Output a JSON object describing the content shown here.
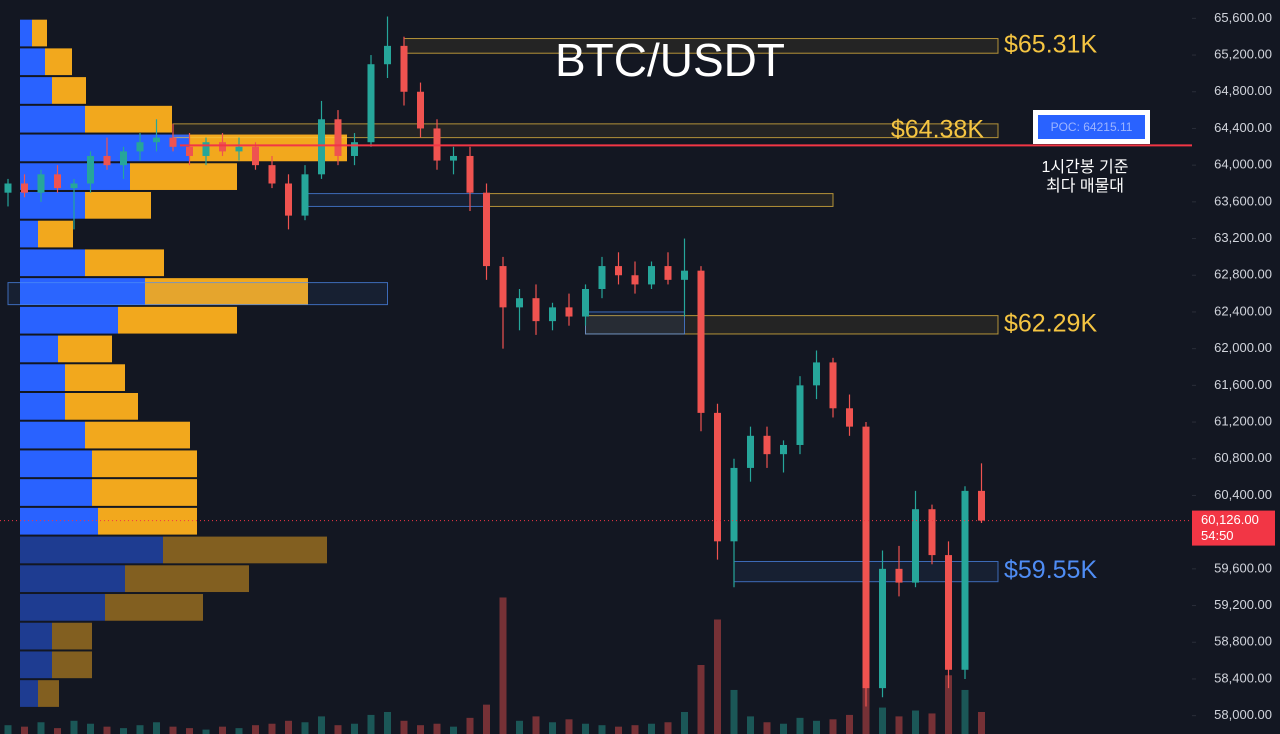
{
  "chart_data": {
    "type": "candlestick",
    "title": "BTC/USDT",
    "ylim": [
      57800,
      65800
    ],
    "yticks": [
      {
        "value": 65600,
        "label": "65,600.00"
      },
      {
        "value": 65200,
        "label": "65,200.00"
      },
      {
        "value": 64800,
        "label": "64,800.00"
      },
      {
        "value": 64400,
        "label": "64,400.00"
      },
      {
        "value": 64000,
        "label": "64,000.00"
      },
      {
        "value": 63600,
        "label": "63,600.00"
      },
      {
        "value": 63200,
        "label": "63,200.00"
      },
      {
        "value": 62800,
        "label": "62,800.00"
      },
      {
        "value": 62400,
        "label": "62,400.00"
      },
      {
        "value": 62000,
        "label": "62,000.00"
      },
      {
        "value": 61600,
        "label": "61,600.00"
      },
      {
        "value": 61200,
        "label": "61,200.00"
      },
      {
        "value": 60800,
        "label": "60,800.00"
      },
      {
        "value": 60400,
        "label": "60,400.00"
      },
      {
        "value": 59600,
        "label": "59,600.00"
      },
      {
        "value": 59200,
        "label": "59,200.00"
      },
      {
        "value": 58800,
        "label": "58,800.00"
      },
      {
        "value": 58400,
        "label": "58,400.00"
      },
      {
        "value": 58000,
        "label": "58,000.00"
      }
    ],
    "up_color": "#26a69a",
    "down_color": "#ef5350",
    "open": [
      63700,
      63800,
      63700,
      63900,
      63750,
      63800,
      64100,
      64000,
      64150,
      64250,
      64300,
      64200,
      64100,
      64250,
      64150,
      64200,
      64000,
      63800,
      63450,
      63900,
      64500,
      64100,
      64250,
      65100,
      65300,
      64800,
      64400,
      64050,
      64100,
      63700,
      62900,
      62450,
      62550,
      62300,
      62450,
      62350,
      62650,
      62900,
      62800,
      62700,
      62900,
      62750,
      62850,
      61300,
      59900,
      60700,
      61050,
      60850,
      60950,
      61600,
      61850,
      61350,
      61150,
      58300,
      59600,
      59450,
      60250,
      59750,
      58500,
      60450
    ],
    "high": [
      63850,
      63900,
      63950,
      64000,
      63850,
      64150,
      64300,
      64200,
      64350,
      64500,
      64450,
      64350,
      64300,
      64350,
      64300,
      64250,
      64100,
      63900,
      64000,
      64700,
      64600,
      64350,
      65200,
      65620,
      65400,
      64900,
      64500,
      64200,
      64200,
      63800,
      63000,
      62650,
      62700,
      62500,
      62600,
      62700,
      63000,
      63050,
      62950,
      62950,
      63050,
      63200,
      62900,
      61400,
      60800,
      61150,
      61150,
      61000,
      61700,
      61980,
      61900,
      61500,
      61200,
      59800,
      59850,
      60450,
      60300,
      59900,
      60500,
      60750
    ],
    "low": [
      63550,
      63650,
      63600,
      63700,
      63300,
      63700,
      63950,
      63850,
      64050,
      64150,
      64150,
      64000,
      64000,
      64100,
      64050,
      63950,
      63750,
      63300,
      63400,
      63850,
      64000,
      64000,
      64200,
      64950,
      64650,
      64300,
      63950,
      63900,
      63500,
      62750,
      62000,
      62200,
      62150,
      62200,
      62250,
      62250,
      62550,
      62700,
      62600,
      62650,
      62700,
      62350,
      61100,
      59700,
      59400,
      60550,
      60700,
      60650,
      60850,
      61450,
      61250,
      61050,
      58100,
      58200,
      59300,
      59400,
      59650,
      58300,
      58400,
      60100
    ],
    "close": [
      63800,
      63700,
      63900,
      63750,
      63800,
      64100,
      64000,
      64150,
      64250,
      64300,
      64200,
      64100,
      64250,
      64150,
      64200,
      64000,
      63800,
      63450,
      63900,
      64500,
      64100,
      64250,
      65100,
      65300,
      64800,
      64400,
      64050,
      64100,
      63700,
      62900,
      62450,
      62550,
      62300,
      62450,
      62350,
      62650,
      62900,
      62800,
      62700,
      62900,
      62750,
      62850,
      61300,
      59900,
      60700,
      61050,
      60850,
      60950,
      61600,
      61850,
      61350,
      61150,
      58300,
      59600,
      59450,
      60250,
      59750,
      58500,
      60450,
      60126
    ],
    "volume": [
      60,
      50,
      80,
      40,
      90,
      70,
      50,
      40,
      60,
      80,
      50,
      40,
      30,
      50,
      40,
      60,
      70,
      90,
      80,
      120,
      60,
      70,
      130,
      150,
      90,
      60,
      70,
      50,
      110,
      200,
      930,
      90,
      120,
      80,
      100,
      70,
      60,
      50,
      60,
      70,
      80,
      150,
      470,
      780,
      300,
      120,
      80,
      70,
      110,
      90,
      100,
      130,
      350,
      180,
      120,
      160,
      140,
      400,
      300,
      150
    ],
    "volume_lim": [
      0,
      5000
    ],
    "profile_xlim": [
      0,
      1260
    ],
    "profile": {
      "price": [
        65440,
        65127,
        64814,
        64501,
        64188,
        63875,
        63562,
        63249,
        62936,
        62623,
        62310,
        61997,
        61684,
        61371,
        61058,
        60745,
        60432,
        60119,
        59806,
        59493,
        59180,
        58867,
        58554,
        58241
      ],
      "buy": [
        12,
        25,
        32,
        65,
        170,
        110,
        65,
        18,
        65,
        125,
        98,
        38,
        45,
        45,
        65,
        72,
        72,
        78,
        143,
        105,
        85,
        32,
        32,
        18
      ],
      "sell": [
        15,
        27,
        34,
        87,
        157,
        107,
        66,
        35,
        79,
        163,
        119,
        54,
        60,
        73,
        105,
        105,
        105,
        99,
        164,
        124,
        98,
        40,
        40,
        21
      ],
      "buy_color": "#2962ff",
      "sell_color": "#f2a81d"
    },
    "zones": [
      {
        "low": 65220,
        "high": 65380,
        "start": 24,
        "end": 60,
        "color": "#f5c542",
        "label": "$65.31K"
      },
      {
        "low": 64300,
        "high": 64450,
        "start": 10,
        "end": 60,
        "color": "#f5c542",
        "label": "$64.38K",
        "label_side": "inside"
      },
      {
        "low": 63550,
        "high": 63690,
        "start": 29,
        "end": 50,
        "color": "#f5c542"
      },
      {
        "low": 62160,
        "high": 62360,
        "start": 35,
        "end": 60,
        "color": "#f5c542",
        "label": "$62.29K"
      },
      {
        "low": 63550,
        "high": 63690,
        "start": 18,
        "end": 29,
        "color": "#4f8df5"
      },
      {
        "low": 62480,
        "high": 62720,
        "start": 0,
        "end": 23,
        "color": "#4f8df5"
      },
      {
        "low": 62160,
        "high": 62400,
        "start": 35,
        "end": 41,
        "color": "#4f8df5"
      },
      {
        "low": 59460,
        "high": 59680,
        "start": 44,
        "end": 60,
        "color": "#4f8df5",
        "label": "$59.55K"
      }
    ],
    "poc": {
      "value": 64215.11,
      "label": "POC: 64215.11",
      "color": "#f23645",
      "note": [
        "1시간봉 기준",
        "최다 매물대"
      ]
    },
    "current": {
      "value": 60126,
      "label": "60,126.00",
      "countdown": "54:50",
      "color": "#f23645"
    }
  }
}
